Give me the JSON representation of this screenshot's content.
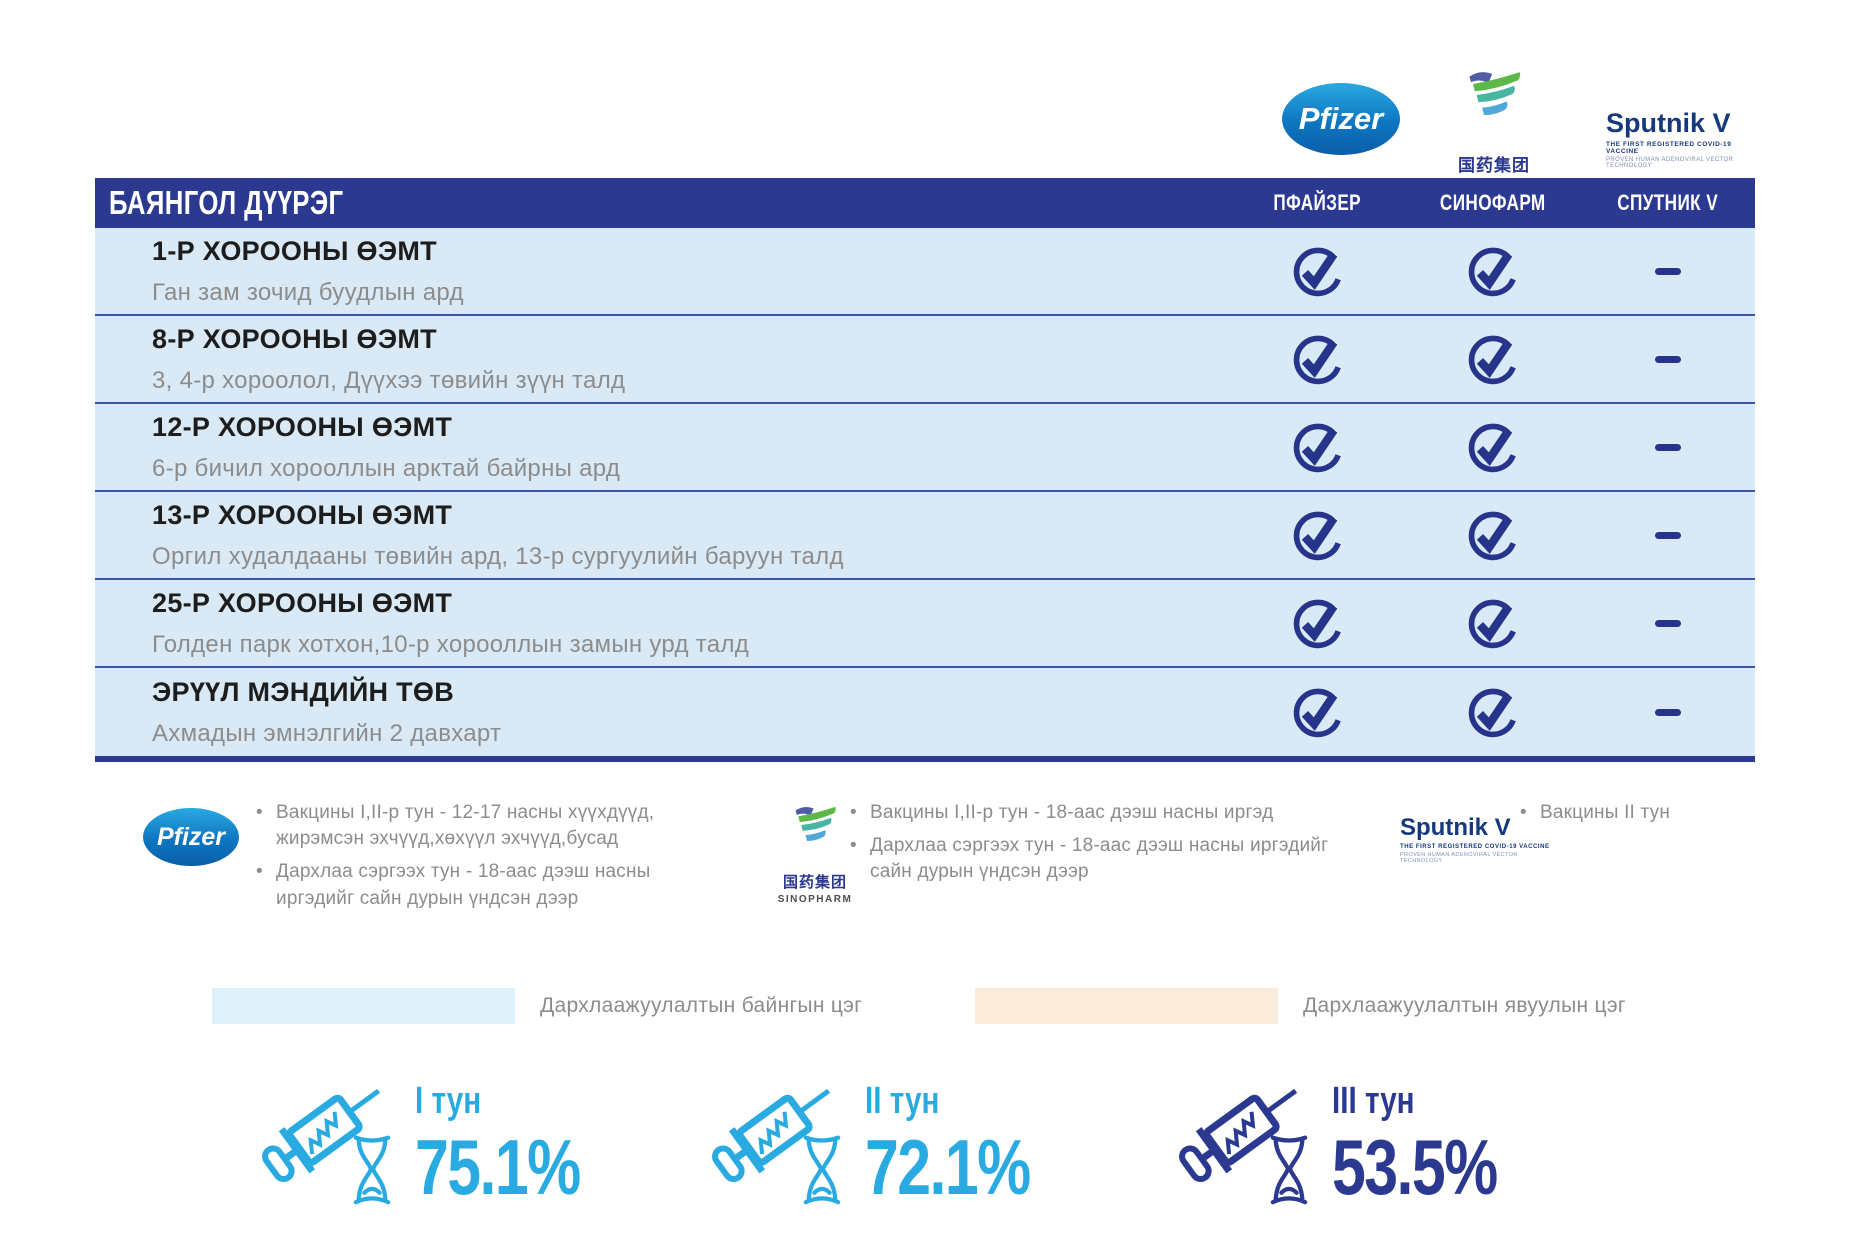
{
  "logos": {
    "pfizer": "Pfizer",
    "sinopharm_cn": "国药集团",
    "sinopharm_en": "SINOPHARM",
    "sputnik": "Sputnik V",
    "sputnik_tag1": "THE FIRST REGISTERED COVID-19 VACCINE",
    "sputnik_tag2": "PROVEN HUMAN ADENOVIRAL VECTOR TECHNOLOGY"
  },
  "table": {
    "district": "БАЯНГОЛ ДҮҮРЭГ",
    "columns": [
      "ПФАЙЗЕР",
      "СИНОФАРМ",
      "СПУТНИК V"
    ],
    "rows": [
      {
        "name": "1-Р ХОРООНЫ ӨЭМТ",
        "location": "Ган зам зочид буудлын ард",
        "available": [
          true,
          true,
          false
        ]
      },
      {
        "name": "8-Р ХОРООНЫ ӨЭМТ",
        "location": "3, 4-р хороолол, Дүүхээ төвийн зүүн талд",
        "available": [
          true,
          true,
          false
        ]
      },
      {
        "name": "12-Р ХОРООНЫ ӨЭМТ",
        "location": "6-р бичил хорооллын арктай байрны ард",
        "available": [
          true,
          true,
          false
        ]
      },
      {
        "name": "13-Р ХОРООНЫ ӨЭМТ",
        "location": "Оргил худалдааны төвийн ард, 13-р сургуулийн баруун талд",
        "available": [
          true,
          true,
          false
        ]
      },
      {
        "name": "25-Р ХОРООНЫ ӨЭМТ",
        "location": "Голден парк хотхон,10-р хорооллын замын урд талд",
        "available": [
          true,
          true,
          false
        ]
      },
      {
        "name": "ЭРҮҮЛ МЭНДИЙН ТӨВ",
        "location": "Ахмадын эмнэлгийн 2 давхарт",
        "available": [
          true,
          true,
          false
        ]
      }
    ]
  },
  "vaccine_notes": {
    "pfizer": [
      "Вакцины I,II-р тун - 12-17 насны хүүхдүүд, жирэмсэн эхчүүд,хөхүүл эхчүүд,бусад",
      "Дархлаа сэргээх тун - 18-аас дээш насны иргэдийг сайн дурын үндсэн дээр"
    ],
    "sinopharm": [
      "Вакцины I,II-р тун - 18-аас дээш насны иргэд",
      "Дархлаа сэргээх тун - 18-аас дээш насны иргэдийг сайн дурын үндсэн дээр"
    ],
    "sputnik": [
      "Вакцины II тун"
    ]
  },
  "point_types": [
    {
      "color": "#dff2fc",
      "label": "Дархлаажуулалтын байнгын цэг"
    },
    {
      "color": "#faebdb",
      "label": "Дархлаажуулалтын явуулын цэг"
    }
  ],
  "doses": [
    {
      "label": "I тун",
      "value": "75.1%",
      "color": "#29abe2"
    },
    {
      "label": "II тун",
      "value": "72.1%",
      "color": "#29abe2"
    },
    {
      "label": "III тун",
      "value": "53.5%",
      "color": "#2b3990"
    }
  ],
  "colors": {
    "header_bg": "#2b3990",
    "row_bg": "#d9eaf6",
    "divider": "#3d56a6",
    "check": "#27348b",
    "accent_cyan": "#29abe2",
    "accent_navy": "#2b3990",
    "text_gray": "#8c8c8c"
  }
}
